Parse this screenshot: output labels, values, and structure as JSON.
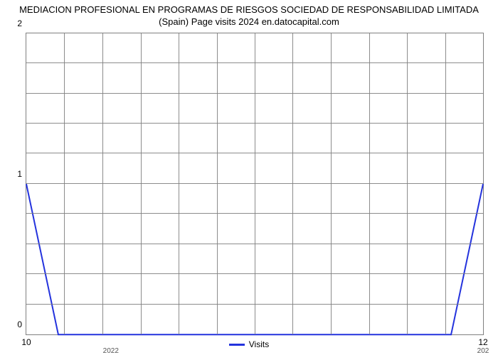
{
  "chart": {
    "type": "line",
    "title": "MEDIACION PROFESIONAL EN PROGRAMAS DE RIESGOS SOCIEDAD DE RESPONSABILIDAD LIMITADA (Spain) Page visits 2024 en.datocapital.com",
    "title_fontsize": 13,
    "background_color": "#ffffff",
    "grid_color": "#808080",
    "axis_color": "#808080",
    "line_color": "#2433dd",
    "line_width": 2,
    "ylim": [
      0,
      2
    ],
    "yticks": [
      0,
      1,
      2
    ],
    "x_major_labels": [
      {
        "label": "10",
        "pos_pct": 0.0
      },
      {
        "label": "12",
        "pos_pct": 100.0
      }
    ],
    "x_minor_labels": [
      {
        "label": "2022",
        "pos_pct": 18.5
      },
      {
        "label": "202",
        "pos_pct": 100.0
      }
    ],
    "x_grid_positions_pct": [
      0,
      8.33,
      16.67,
      25,
      33.33,
      41.67,
      50,
      58.33,
      66.67,
      75,
      83.33,
      91.67,
      100
    ],
    "y_grid_positions_pct": [
      0,
      10,
      20,
      30,
      40,
      50,
      60,
      70,
      80,
      90,
      100
    ],
    "series": {
      "name": "Visits",
      "points": [
        {
          "x_pct": 0.0,
          "y_val": 1.0
        },
        {
          "x_pct": 7.0,
          "y_val": 0.0
        },
        {
          "x_pct": 93.0,
          "y_val": 0.0
        },
        {
          "x_pct": 100.0,
          "y_val": 1.0
        }
      ]
    },
    "legend_text": "Visits"
  }
}
